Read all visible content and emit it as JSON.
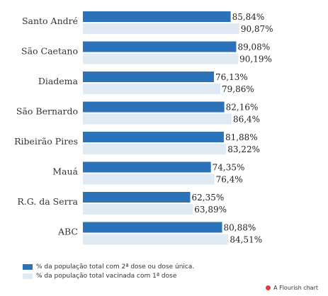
{
  "chart_data": {
    "type": "bar",
    "orientation": "horizontal",
    "categories": [
      "Santo André",
      "São Caetano",
      "Diadema",
      "São Bernardo",
      "Ribeirão Pires",
      "Mauá",
      "R.G. da Serra",
      "ABC"
    ],
    "series": [
      {
        "name": "% da população total com 2ª dose ou dose única.",
        "color": "#2b72b8",
        "values": [
          85.84,
          89.08,
          76.13,
          82.16,
          81.88,
          74.35,
          62.35,
          80.88
        ],
        "labels": [
          "85,84%",
          "89,08%",
          "76,13%",
          "82,16%",
          "81,88%",
          "74,35%",
          "62,35%",
          "80,88%"
        ]
      },
      {
        "name": "% da população total vacinada com 1ª dose",
        "color": "#dfeaf5",
        "values": [
          90.87,
          90.19,
          79.86,
          86.4,
          83.22,
          76.4,
          63.89,
          84.51
        ],
        "labels": [
          "90,87%",
          "90,19%",
          "79,86%",
          "86,4%",
          "83,22%",
          "76,4%",
          "63,89%",
          "84,51%"
        ]
      }
    ],
    "xlim": [
      0,
      100
    ],
    "grid": false,
    "legend_position": "bottom-left"
  },
  "footer": {
    "credit": "A Flourish chart",
    "credit_icon": "flourish-logo-icon"
  }
}
